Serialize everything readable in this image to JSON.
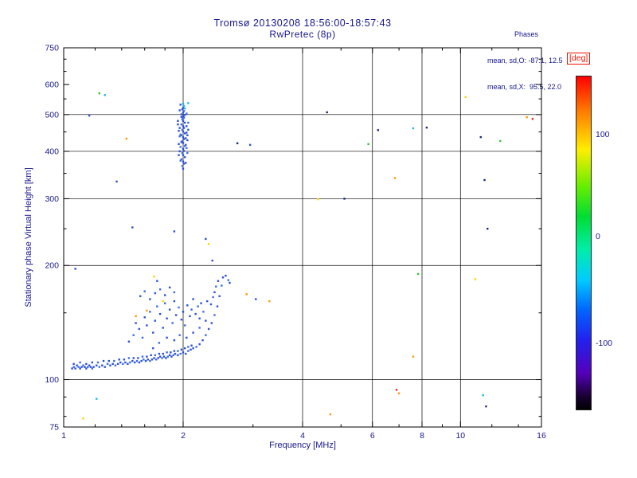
{
  "chart_data": {
    "type": "scatter",
    "title": "Tromsø 20130208 18:56:00-18:57:43",
    "subtitle": "RwPretec (8p)",
    "annotations": {
      "heading": "Phases",
      "mean_sd_O": "mean, sd,O: -87.1, 12.5",
      "mean_sd_X": "mean, sd,X:  95.5, 22.0"
    },
    "xlabel": "Frequency [MHz]",
    "ylabel": "Stationary phase Virtual Height [km]",
    "x_scale": "log",
    "y_scale": "log",
    "xlim": [
      1,
      16
    ],
    "ylim": [
      75,
      750
    ],
    "x_ticks": [
      1,
      2,
      4,
      6,
      8,
      10,
      16
    ],
    "x_minor_ticks": [
      1.2,
      1.4,
      1.6,
      1.8,
      3,
      5,
      7,
      9,
      12,
      14
    ],
    "x_gridlines": [
      2,
      4,
      6,
      8,
      10
    ],
    "y_ticks": [
      75,
      100,
      200,
      300,
      400,
      500,
      600,
      750
    ],
    "y_minor_ticks": [
      80,
      90,
      150,
      250,
      350,
      450,
      550,
      650,
      700
    ],
    "y_gridlines": [
      100,
      200,
      300,
      400,
      500
    ],
    "grid": true,
    "text_color": "#16168e",
    "axis_color": "#000000",
    "colorbar": {
      "label": "[deg]",
      "label_color": "#ee1100",
      "ticks": [
        {
          "value": "100",
          "pos": 0.175
        },
        {
          "value": "0",
          "pos": 0.48
        },
        {
          "value": "-100",
          "pos": 0.8
        }
      ],
      "gradient": [
        "#ff0000 0%",
        "#ff7700 10%",
        "#ffee00 22%",
        "#66ee00 33%",
        "#00dd33 42%",
        "#00eeaa 52%",
        "#00ccff 61%",
        "#0066ff 70%",
        "#2222ee 79%",
        "#5500bb 89%",
        "#1a0033 96%",
        "#000000 100%"
      ]
    },
    "palette": [
      "#2b50d9",
      "#3a6ae8",
      "#19b8e6",
      "#ff9900",
      "#ffd400",
      "#e83015",
      "#35c435",
      "#1a2a80"
    ],
    "points_format": [
      "frequency_mhz",
      "virtual_height_km",
      "palette_index"
    ],
    "points": [
      [
        1.05,
        107,
        0
      ],
      [
        1.06,
        108,
        1
      ],
      [
        1.07,
        107,
        0
      ],
      [
        1.08,
        109,
        0
      ],
      [
        1.09,
        108,
        1
      ],
      [
        1.1,
        107,
        0
      ],
      [
        1.11,
        108,
        0
      ],
      [
        1.12,
        109,
        1
      ],
      [
        1.13,
        108,
        0
      ],
      [
        1.14,
        107,
        0
      ],
      [
        1.15,
        108,
        1
      ],
      [
        1.16,
        109,
        0
      ],
      [
        1.17,
        108,
        0
      ],
      [
        1.18,
        107,
        1
      ],
      [
        1.19,
        108,
        0
      ],
      [
        1.21,
        109,
        0
      ],
      [
        1.23,
        108,
        1
      ],
      [
        1.25,
        109,
        0
      ],
      [
        1.27,
        108,
        0
      ],
      [
        1.29,
        110,
        1
      ],
      [
        1.31,
        109,
        0
      ],
      [
        1.33,
        110,
        0
      ],
      [
        1.35,
        109,
        1
      ],
      [
        1.37,
        110,
        0
      ],
      [
        1.39,
        111,
        0
      ],
      [
        1.41,
        110,
        1
      ],
      [
        1.43,
        111,
        0
      ],
      [
        1.45,
        110,
        0
      ],
      [
        1.47,
        111,
        1
      ],
      [
        1.49,
        112,
        0
      ],
      [
        1.51,
        111,
        0
      ],
      [
        1.53,
        112,
        1
      ],
      [
        1.55,
        111,
        0
      ],
      [
        1.57,
        112,
        0
      ],
      [
        1.59,
        113,
        1
      ],
      [
        1.61,
        112,
        0
      ],
      [
        1.63,
        113,
        0
      ],
      [
        1.65,
        112,
        1
      ],
      [
        1.67,
        113,
        0
      ],
      [
        1.69,
        114,
        0
      ],
      [
        1.71,
        113,
        1
      ],
      [
        1.73,
        114,
        0
      ],
      [
        1.75,
        115,
        0
      ],
      [
        1.77,
        114,
        1
      ],
      [
        1.79,
        115,
        0
      ],
      [
        1.81,
        114,
        0
      ],
      [
        1.83,
        115,
        1
      ],
      [
        1.85,
        116,
        0
      ],
      [
        1.87,
        115,
        0
      ],
      [
        1.89,
        116,
        1
      ],
      [
        1.91,
        117,
        0
      ],
      [
        1.94,
        116,
        0
      ],
      [
        1.97,
        117,
        1
      ],
      [
        2.0,
        118,
        0
      ],
      [
        2.03,
        117,
        0
      ],
      [
        2.06,
        119,
        1
      ],
      [
        2.09,
        120,
        0
      ],
      [
        2.12,
        121,
        0
      ],
      [
        2.16,
        122,
        1
      ],
      [
        2.2,
        124,
        0
      ],
      [
        2.24,
        127,
        0
      ],
      [
        2.28,
        131,
        1
      ],
      [
        2.32,
        136,
        0
      ],
      [
        2.36,
        141,
        0
      ],
      [
        2.4,
        148,
        1
      ],
      [
        2.44,
        156,
        0
      ],
      [
        2.47,
        166,
        0
      ],
      [
        2.5,
        177,
        1
      ],
      [
        2.52,
        186,
        0
      ],
      [
        1.06,
        110,
        0
      ],
      [
        1.1,
        111,
        1
      ],
      [
        1.14,
        110,
        0
      ],
      [
        1.18,
        111,
        0
      ],
      [
        1.22,
        111,
        1
      ],
      [
        1.26,
        112,
        0
      ],
      [
        1.3,
        112,
        0
      ],
      [
        1.34,
        112,
        1
      ],
      [
        1.38,
        113,
        0
      ],
      [
        1.42,
        113,
        0
      ],
      [
        1.46,
        114,
        1
      ],
      [
        1.5,
        114,
        0
      ],
      [
        1.54,
        114,
        0
      ],
      [
        1.58,
        115,
        1
      ],
      [
        1.62,
        115,
        0
      ],
      [
        1.66,
        116,
        0
      ],
      [
        1.7,
        116,
        1
      ],
      [
        1.74,
        117,
        0
      ],
      [
        1.78,
        117,
        0
      ],
      [
        1.82,
        118,
        1
      ],
      [
        1.86,
        118,
        0
      ],
      [
        1.9,
        119,
        0
      ],
      [
        1.94,
        119,
        1
      ],
      [
        1.98,
        120,
        0
      ],
      [
        2.02,
        121,
        0
      ],
      [
        2.06,
        122,
        1
      ],
      [
        2.1,
        123,
        0
      ],
      [
        1.46,
        126,
        0
      ],
      [
        1.5,
        131,
        1
      ],
      [
        1.52,
        141,
        0
      ],
      [
        1.55,
        136,
        0
      ],
      [
        1.58,
        129,
        1
      ],
      [
        1.6,
        146,
        0
      ],
      [
        1.62,
        139,
        0
      ],
      [
        1.62,
        152,
        3
      ],
      [
        1.65,
        151,
        1
      ],
      [
        1.68,
        133,
        0
      ],
      [
        1.7,
        143,
        0
      ],
      [
        1.72,
        156,
        1
      ],
      [
        1.75,
        149,
        0
      ],
      [
        1.78,
        137,
        0
      ],
      [
        1.78,
        161,
        4
      ],
      [
        1.8,
        159,
        1
      ],
      [
        1.82,
        145,
        0
      ],
      [
        1.85,
        153,
        0
      ],
      [
        1.88,
        141,
        1
      ],
      [
        1.9,
        161,
        0
      ],
      [
        1.92,
        148,
        0
      ],
      [
        1.95,
        155,
        1
      ],
      [
        1.98,
        144,
        0
      ],
      [
        2.0,
        151,
        0
      ],
      [
        2.02,
        139,
        1
      ],
      [
        2.05,
        157,
        0
      ],
      [
        2.08,
        147,
        0
      ],
      [
        2.1,
        153,
        1
      ],
      [
        2.12,
        163,
        0
      ],
      [
        2.15,
        149,
        0
      ],
      [
        2.18,
        156,
        1
      ],
      [
        2.2,
        145,
        0
      ],
      [
        2.22,
        159,
        0
      ],
      [
        2.25,
        151,
        1
      ],
      [
        2.3,
        161,
        0
      ],
      [
        1.56,
        166,
        0
      ],
      [
        1.6,
        171,
        1
      ],
      [
        1.65,
        163,
        0
      ],
      [
        1.7,
        169,
        0
      ],
      [
        1.75,
        173,
        1
      ],
      [
        1.8,
        167,
        0
      ],
      [
        1.85,
        175,
        0
      ],
      [
        1.9,
        170,
        1
      ],
      [
        1.52,
        147,
        3
      ],
      [
        1.68,
        121,
        0
      ],
      [
        1.74,
        125,
        1
      ],
      [
        1.82,
        129,
        0
      ],
      [
        1.9,
        127,
        0
      ],
      [
        1.96,
        131,
        1
      ],
      [
        2.04,
        129,
        0
      ],
      [
        2.12,
        133,
        0
      ],
      [
        2.2,
        137,
        1
      ],
      [
        2.28,
        143,
        0
      ],
      [
        2.56,
        188,
        0
      ],
      [
        2.6,
        183,
        1
      ],
      [
        2.62,
        180,
        0
      ],
      [
        2.4,
        170,
        0
      ],
      [
        2.42,
        176,
        1
      ],
      [
        2.45,
        182,
        0
      ],
      [
        2.35,
        158,
        0
      ],
      [
        2.38,
        165,
        1
      ],
      [
        2.0,
        360,
        0
      ],
      [
        1.99,
        366,
        1
      ],
      [
        2.01,
        371,
        0
      ],
      [
        2.0,
        376,
        0
      ],
      [
        1.98,
        381,
        1
      ],
      [
        2.02,
        386,
        0
      ],
      [
        2.0,
        391,
        0
      ],
      [
        1.99,
        396,
        1
      ],
      [
        2.01,
        401,
        0
      ],
      [
        2.0,
        406,
        0
      ],
      [
        1.97,
        411,
        1
      ],
      [
        2.03,
        416,
        0
      ],
      [
        2.0,
        421,
        0
      ],
      [
        1.99,
        426,
        1
      ],
      [
        2.01,
        431,
        0
      ],
      [
        2.0,
        436,
        0
      ],
      [
        1.98,
        441,
        1
      ],
      [
        2.02,
        446,
        0
      ],
      [
        2.0,
        451,
        0
      ],
      [
        1.99,
        456,
        1
      ],
      [
        2.01,
        461,
        0
      ],
      [
        2.0,
        466,
        0
      ],
      [
        1.98,
        471,
        1
      ],
      [
        2.02,
        476,
        0
      ],
      [
        2.0,
        481,
        0
      ],
      [
        1.99,
        486,
        1
      ],
      [
        2.01,
        491,
        0
      ],
      [
        2.0,
        496,
        0
      ],
      [
        1.98,
        501,
        1
      ],
      [
        2.0,
        506,
        0
      ],
      [
        2.01,
        511,
        1
      ],
      [
        1.99,
        516,
        0
      ],
      [
        2.0,
        521,
        0
      ],
      [
        2.01,
        527,
        2
      ],
      [
        1.96,
        400,
        0
      ],
      [
        2.04,
        408,
        1
      ],
      [
        1.95,
        418,
        0
      ],
      [
        2.05,
        428,
        0
      ],
      [
        1.96,
        438,
        1
      ],
      [
        2.04,
        448,
        0
      ],
      [
        1.95,
        391,
        0
      ],
      [
        2.05,
        396,
        1
      ],
      [
        1.96,
        461,
        0
      ],
      [
        2.04,
        466,
        0
      ],
      [
        2.06,
        476,
        1
      ],
      [
        1.94,
        481,
        0
      ],
      [
        2.03,
        373,
        0
      ],
      [
        1.97,
        378,
        1
      ],
      [
        2.05,
        441,
        0
      ],
      [
        1.95,
        453,
        0
      ],
      [
        2.02,
        413,
        1
      ],
      [
        1.98,
        423,
        0
      ],
      [
        2.03,
        433,
        0
      ],
      [
        1.97,
        443,
        1
      ],
      [
        2.06,
        456,
        0
      ],
      [
        1.94,
        471,
        0
      ],
      [
        2.0,
        489,
        1
      ],
      [
        2.02,
        499,
        0
      ],
      [
        1.98,
        493,
        0
      ],
      [
        2.04,
        503,
        1
      ],
      [
        1.96,
        513,
        0
      ],
      [
        2.02,
        519,
        2
      ],
      [
        2.0,
        534,
        2
      ],
      [
        1.97,
        531,
        0
      ],
      [
        1.23,
        569,
        6
      ],
      [
        1.27,
        563,
        2
      ],
      [
        1.16,
        497,
        0
      ],
      [
        1.44,
        432,
        3
      ],
      [
        2.06,
        536,
        2
      ],
      [
        1.36,
        333,
        0
      ],
      [
        1.07,
        196,
        0
      ],
      [
        1.49,
        252,
        0
      ],
      [
        1.69,
        187,
        4
      ],
      [
        1.72,
        182,
        0
      ],
      [
        2.32,
        228,
        4
      ],
      [
        2.28,
        235,
        0
      ],
      [
        2.37,
        206,
        0
      ],
      [
        2.74,
        420,
        7
      ],
      [
        2.95,
        416,
        0
      ],
      [
        2.89,
        168,
        3
      ],
      [
        3.05,
        163,
        0
      ],
      [
        3.3,
        161,
        3
      ],
      [
        4.61,
        507,
        7
      ],
      [
        5.1,
        300,
        7
      ],
      [
        5.86,
        418,
        6
      ],
      [
        6.2,
        455,
        7
      ],
      [
        7.6,
        460,
        2
      ],
      [
        6.84,
        340,
        3
      ],
      [
        7.82,
        190,
        6
      ],
      [
        8.22,
        462,
        7
      ],
      [
        10.3,
        556,
        4
      ],
      [
        11.25,
        436,
        7
      ],
      [
        11.5,
        336,
        7
      ],
      [
        10.9,
        184,
        4
      ],
      [
        11.7,
        250,
        7
      ],
      [
        12.6,
        426,
        6
      ],
      [
        14.7,
        492,
        3
      ],
      [
        15.2,
        487,
        5
      ],
      [
        6.9,
        94,
        5
      ],
      [
        7.0,
        92,
        3
      ],
      [
        4.7,
        81,
        3
      ],
      [
        1.21,
        89,
        2
      ],
      [
        1.12,
        79,
        4
      ],
      [
        11.4,
        91,
        2
      ],
      [
        11.6,
        85,
        7
      ],
      [
        7.6,
        115,
        3
      ],
      [
        1.9,
        246,
        0
      ],
      [
        4.38,
        299,
        4
      ]
    ]
  }
}
